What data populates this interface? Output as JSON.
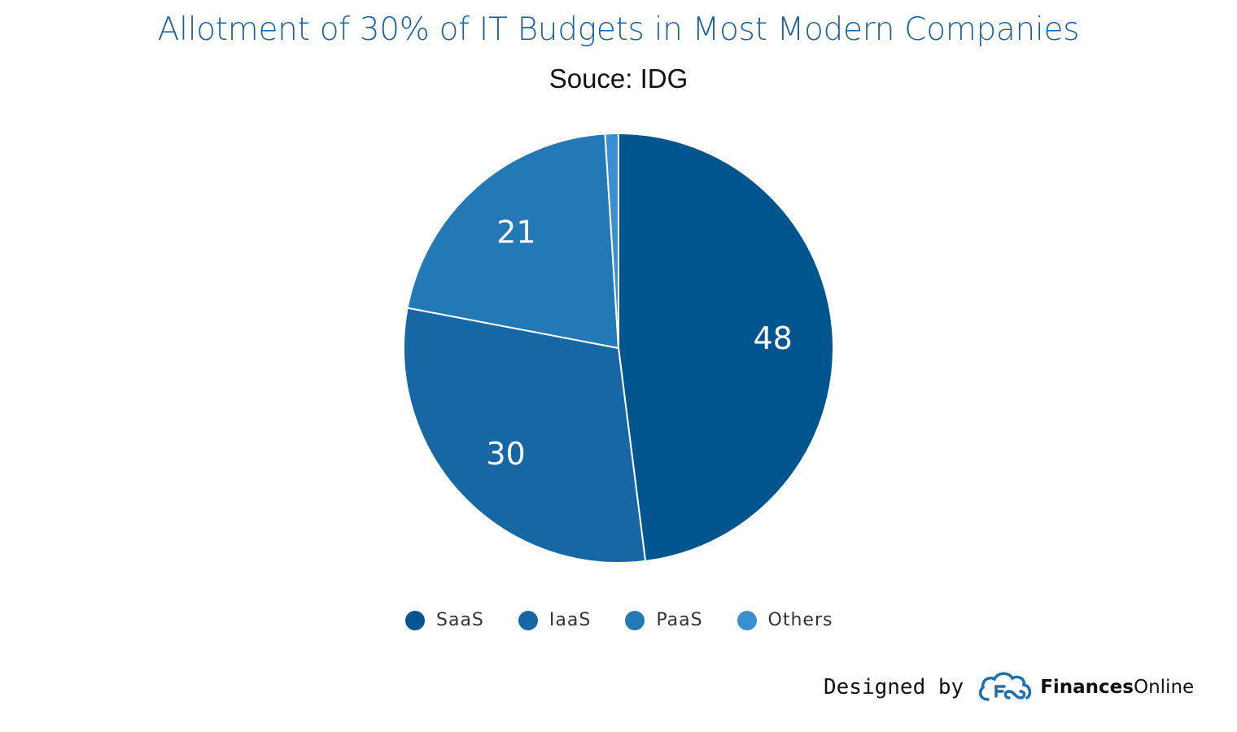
{
  "chart_data": {
    "type": "pie",
    "title": "Allotment of 30% of IT Budgets in Most Modern Companies",
    "subtitle": "Souce: IDG",
    "categories": [
      "SaaS",
      "IaaS",
      "PaaS",
      "Others"
    ],
    "values": [
      48,
      30,
      21,
      1
    ],
    "data_labels": [
      "48",
      "30",
      "21",
      ""
    ],
    "colors": [
      "#00558e",
      "#1667a3",
      "#2279b5",
      "#3a8fd0"
    ],
    "legend_position": "bottom",
    "start_angle": "12 o'clock, clockwise"
  },
  "legend": {
    "items": [
      {
        "label": "SaaS",
        "color": "#00558e"
      },
      {
        "label": "IaaS",
        "color": "#1667a3"
      },
      {
        "label": "PaaS",
        "color": "#2279b5"
      },
      {
        "label": "Others",
        "color": "#3a8fd0"
      }
    ]
  },
  "credit": {
    "designed_by": "Designed by",
    "brand_bold": "Finances",
    "brand_regular": "Online",
    "logo_icon": "cloud-f-logo-icon",
    "logo_color": "#1e6fb0"
  }
}
